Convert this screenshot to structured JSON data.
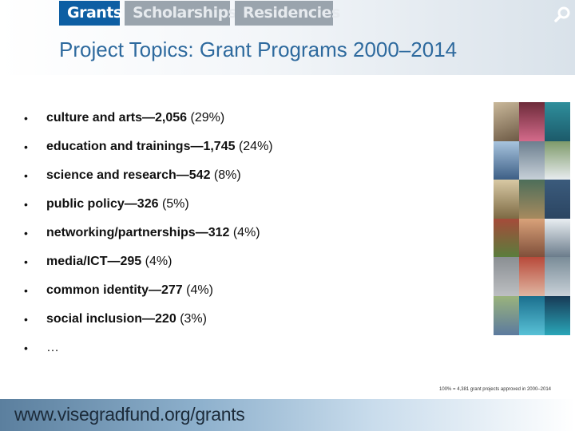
{
  "nav": {
    "tabs": [
      {
        "label": "Grants",
        "active": true
      },
      {
        "label": "Scholarships",
        "active": false
      },
      {
        "label": "Residencies",
        "active": false
      }
    ],
    "search_icon": "search-icon"
  },
  "title": "Project Topics: Grant Programs 2000–2014",
  "topics": [
    {
      "label": "culture and arts—2,056",
      "pct": "(29%)"
    },
    {
      "label": "education and trainings—1,745",
      "pct": "(24%)"
    },
    {
      "label": "science and research—542",
      "pct": "(8%)"
    },
    {
      "label": "public policy—326",
      "pct": "(5%)"
    },
    {
      "label": "networking/partnerships—312",
      "pct": "(4%)"
    },
    {
      "label": "media/ICT—295",
      "pct": "(4%)"
    },
    {
      "label": "common identity—277",
      "pct": "(4%)"
    },
    {
      "label": "social inclusion—220",
      "pct": "(3%)"
    },
    {
      "label": "…",
      "pct": ""
    }
  ],
  "footnote": "100% = 4,381 grant projects approved in 2000–2014",
  "footer_url": "www.visegradfund.org/grants",
  "colors": {
    "active_tab": "#0d5ea3",
    "inactive_tab": "#9aa4ad",
    "title": "#2e6a9e"
  }
}
